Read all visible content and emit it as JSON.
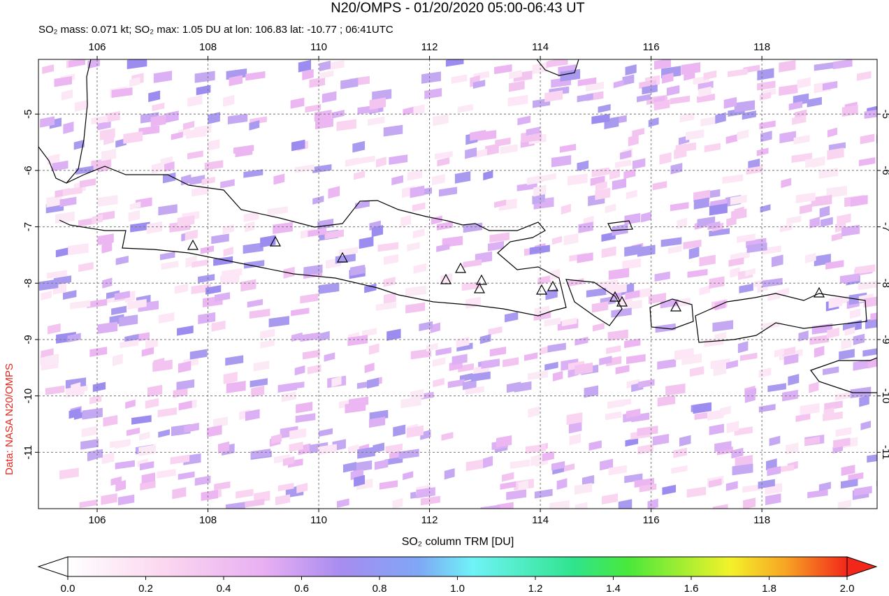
{
  "title": "N20/OMPS - 01/20/2020 05:00-06:43 UT",
  "subtitle": "SO₂ mass: 0.071 kt; SO₂ max: 1.05 DU at lon: 106.83 lat: -10.77 ; 06:41UTC",
  "credit": "Data: NASA N20/OMPS",
  "map": {
    "xlim": [
      104.94,
      120.08
    ],
    "ylim": [
      -12,
      -4.03
    ],
    "xticks": [
      106,
      108,
      110,
      112,
      114,
      116,
      118
    ],
    "yticks": [
      -5,
      -6,
      -7,
      -8,
      -9,
      -10,
      -11
    ]
  },
  "colorbar": {
    "label": "SO₂ column TRM [DU]",
    "lim": [
      0,
      2
    ],
    "ticks": [
      {
        "value": 0,
        "label": "0.0"
      },
      {
        "value": 0.2,
        "label": "0.2"
      },
      {
        "value": 0.4,
        "label": "0.4"
      },
      {
        "value": 0.6,
        "label": "0.6"
      },
      {
        "value": 0.8,
        "label": "0.8"
      },
      {
        "value": 1,
        "label": "1.0"
      },
      {
        "value": 1.2,
        "label": "1.2"
      },
      {
        "value": 1.4,
        "label": "1.4"
      },
      {
        "value": 1.6,
        "label": "1.6"
      },
      {
        "value": 1.8,
        "label": "1.8"
      },
      {
        "value": 2,
        "label": "2.0"
      }
    ]
  }
}
